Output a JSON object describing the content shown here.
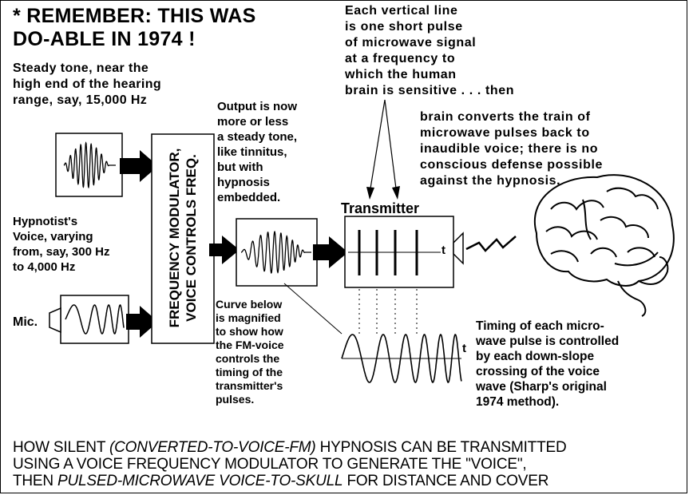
{
  "title": "* REMEMBER: THIS WAS\nDO-ABLE IN 1974 !",
  "pulse_note": "Each vertical line\nis one short pulse\nof microwave signal\nat a frequency to\nwhich the human\nbrain is sensitive . . . then",
  "brain_note": "brain converts the train of\nmicrowave pulses back to\ninaudible voice; there is no\nconscious defense possible\nagainst the hypnosis.",
  "steady_tone_note": "Steady tone, near the\nhigh end of the hearing\nrange, say,  15,000 Hz",
  "output_note": "Output is now\nmore or less\na steady tone,\nlike tinnitus,\nbut with\nhypnosis\nembedded.",
  "hypnotist_note": "Hypnotist's\nVoice, varying\nfrom, say, 300 Hz\nto 4,000 Hz",
  "mic_label": "Mic.",
  "modulator_label": "FREQUENCY MODULATOR,\nVOICE CONTROLS FREQ.",
  "transmitter_label": "Transmitter",
  "t_label": "t",
  "curve_note": "Curve below\nis magnified\nto show how\nthe FM-voice\ncontrols the\ntiming of the\ntransmitter's\npulses.",
  "timing_note": "Timing of each micro-\nwave pulse is controlled\nby each down-slope\ncrossing of the voice\nwave (Sharp's original\n1974 method).",
  "caption": {
    "line1_a": "HOW SILENT ",
    "line1_b": "(CONVERTED-TO-VOICE-FM)",
    "line1_c": " HYPNOSIS CAN BE TRANSMITTED",
    "line2": "USING A VOICE FREQUENCY MODULATOR TO GENERATE THE \"VOICE\",",
    "line3_a": "THEN ",
    "line3_b": "PULSED-MICROWAVE VOICE-TO-SKULL",
    "line3_c": " FOR DISTANCE AND COVER"
  },
  "colors": {
    "ink": "#000000",
    "paper": "#ffffff"
  }
}
